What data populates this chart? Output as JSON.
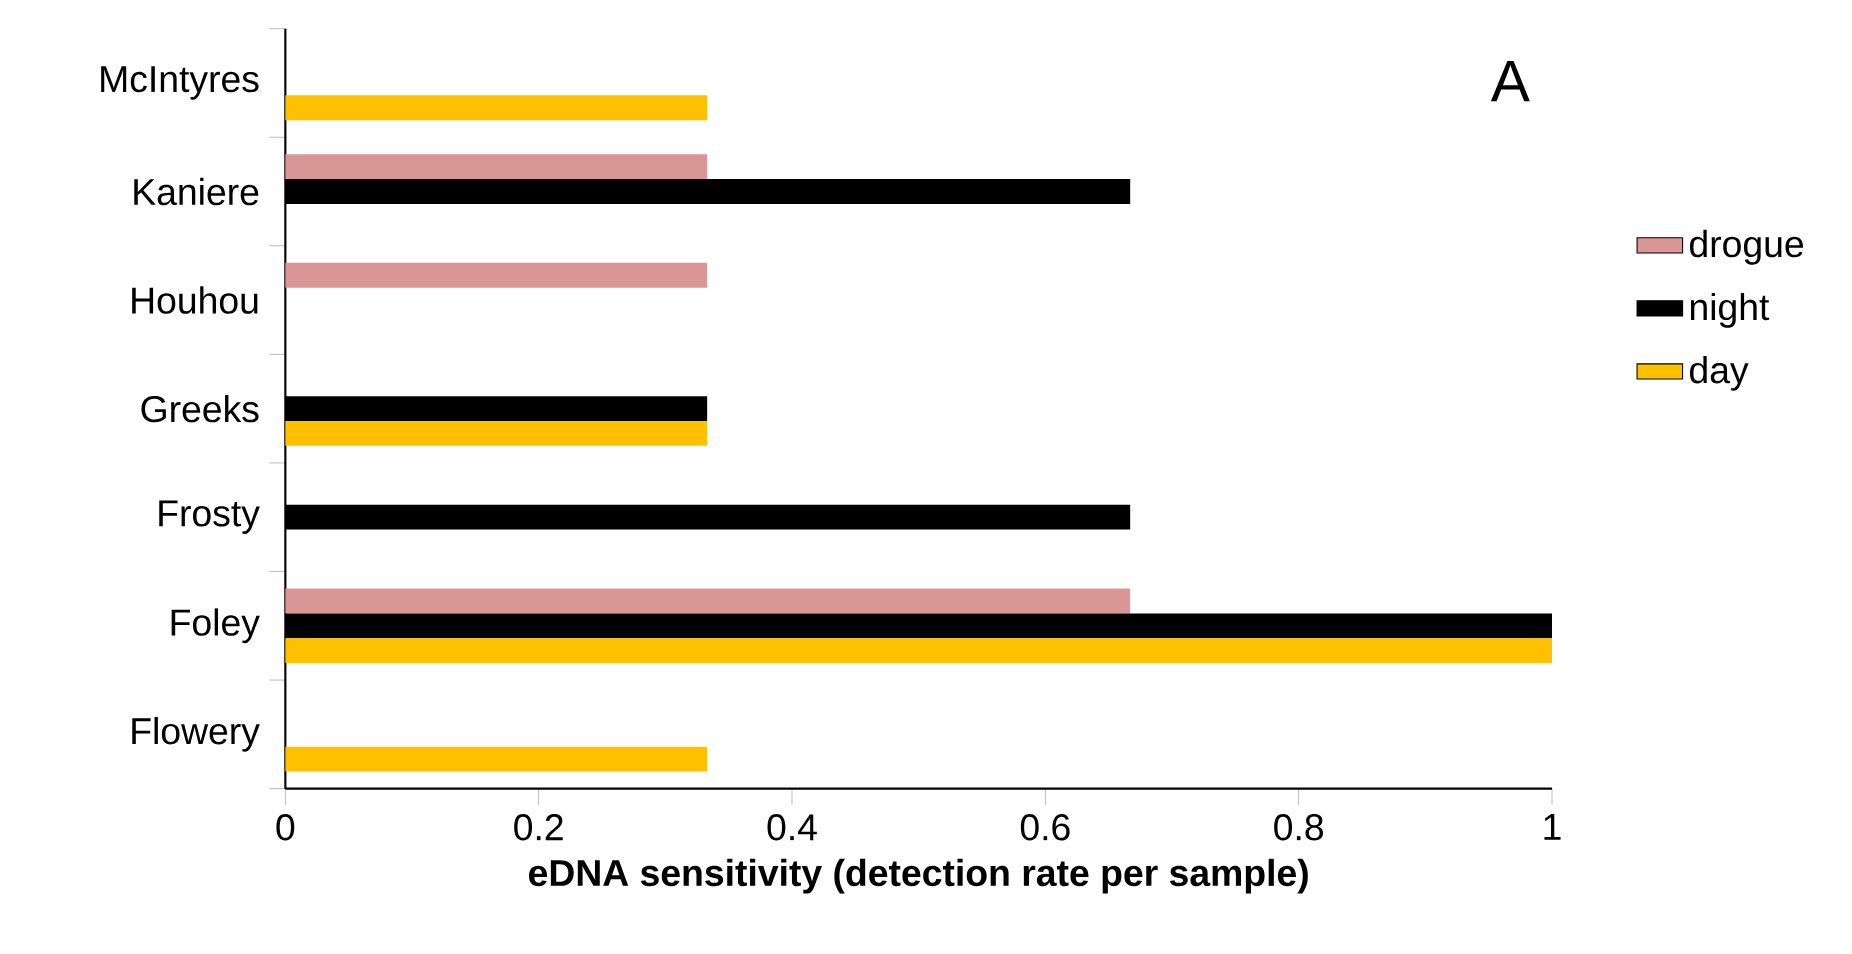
{
  "chart_data": {
    "type": "bar",
    "orientation": "horizontal",
    "categories": [
      "McIntyres",
      "Kaniere",
      "Houhou",
      "Greeks",
      "Frosty",
      "Foley",
      "Flowery"
    ],
    "series": [
      {
        "name": "drogue",
        "color": "#d99694",
        "values": [
          0,
          0.333,
          0.333,
          0,
          0,
          0.667,
          0
        ]
      },
      {
        "name": "night",
        "color": "#000000",
        "values": [
          0,
          0.667,
          0,
          0.333,
          0.667,
          1,
          0
        ]
      },
      {
        "name": "day",
        "color": "#ffc000",
        "values": [
          0.333,
          0,
          0,
          0.333,
          0,
          1,
          0.333
        ]
      }
    ],
    "xlabel": "eDNA  sensitivity (detection rate per sample)",
    "xlim": [
      0,
      1
    ],
    "xticks": [
      0,
      0.2,
      0.4,
      0.6,
      0.8,
      1
    ],
    "annotations": [
      "A"
    ],
    "legend": "right",
    "grid": false
  }
}
